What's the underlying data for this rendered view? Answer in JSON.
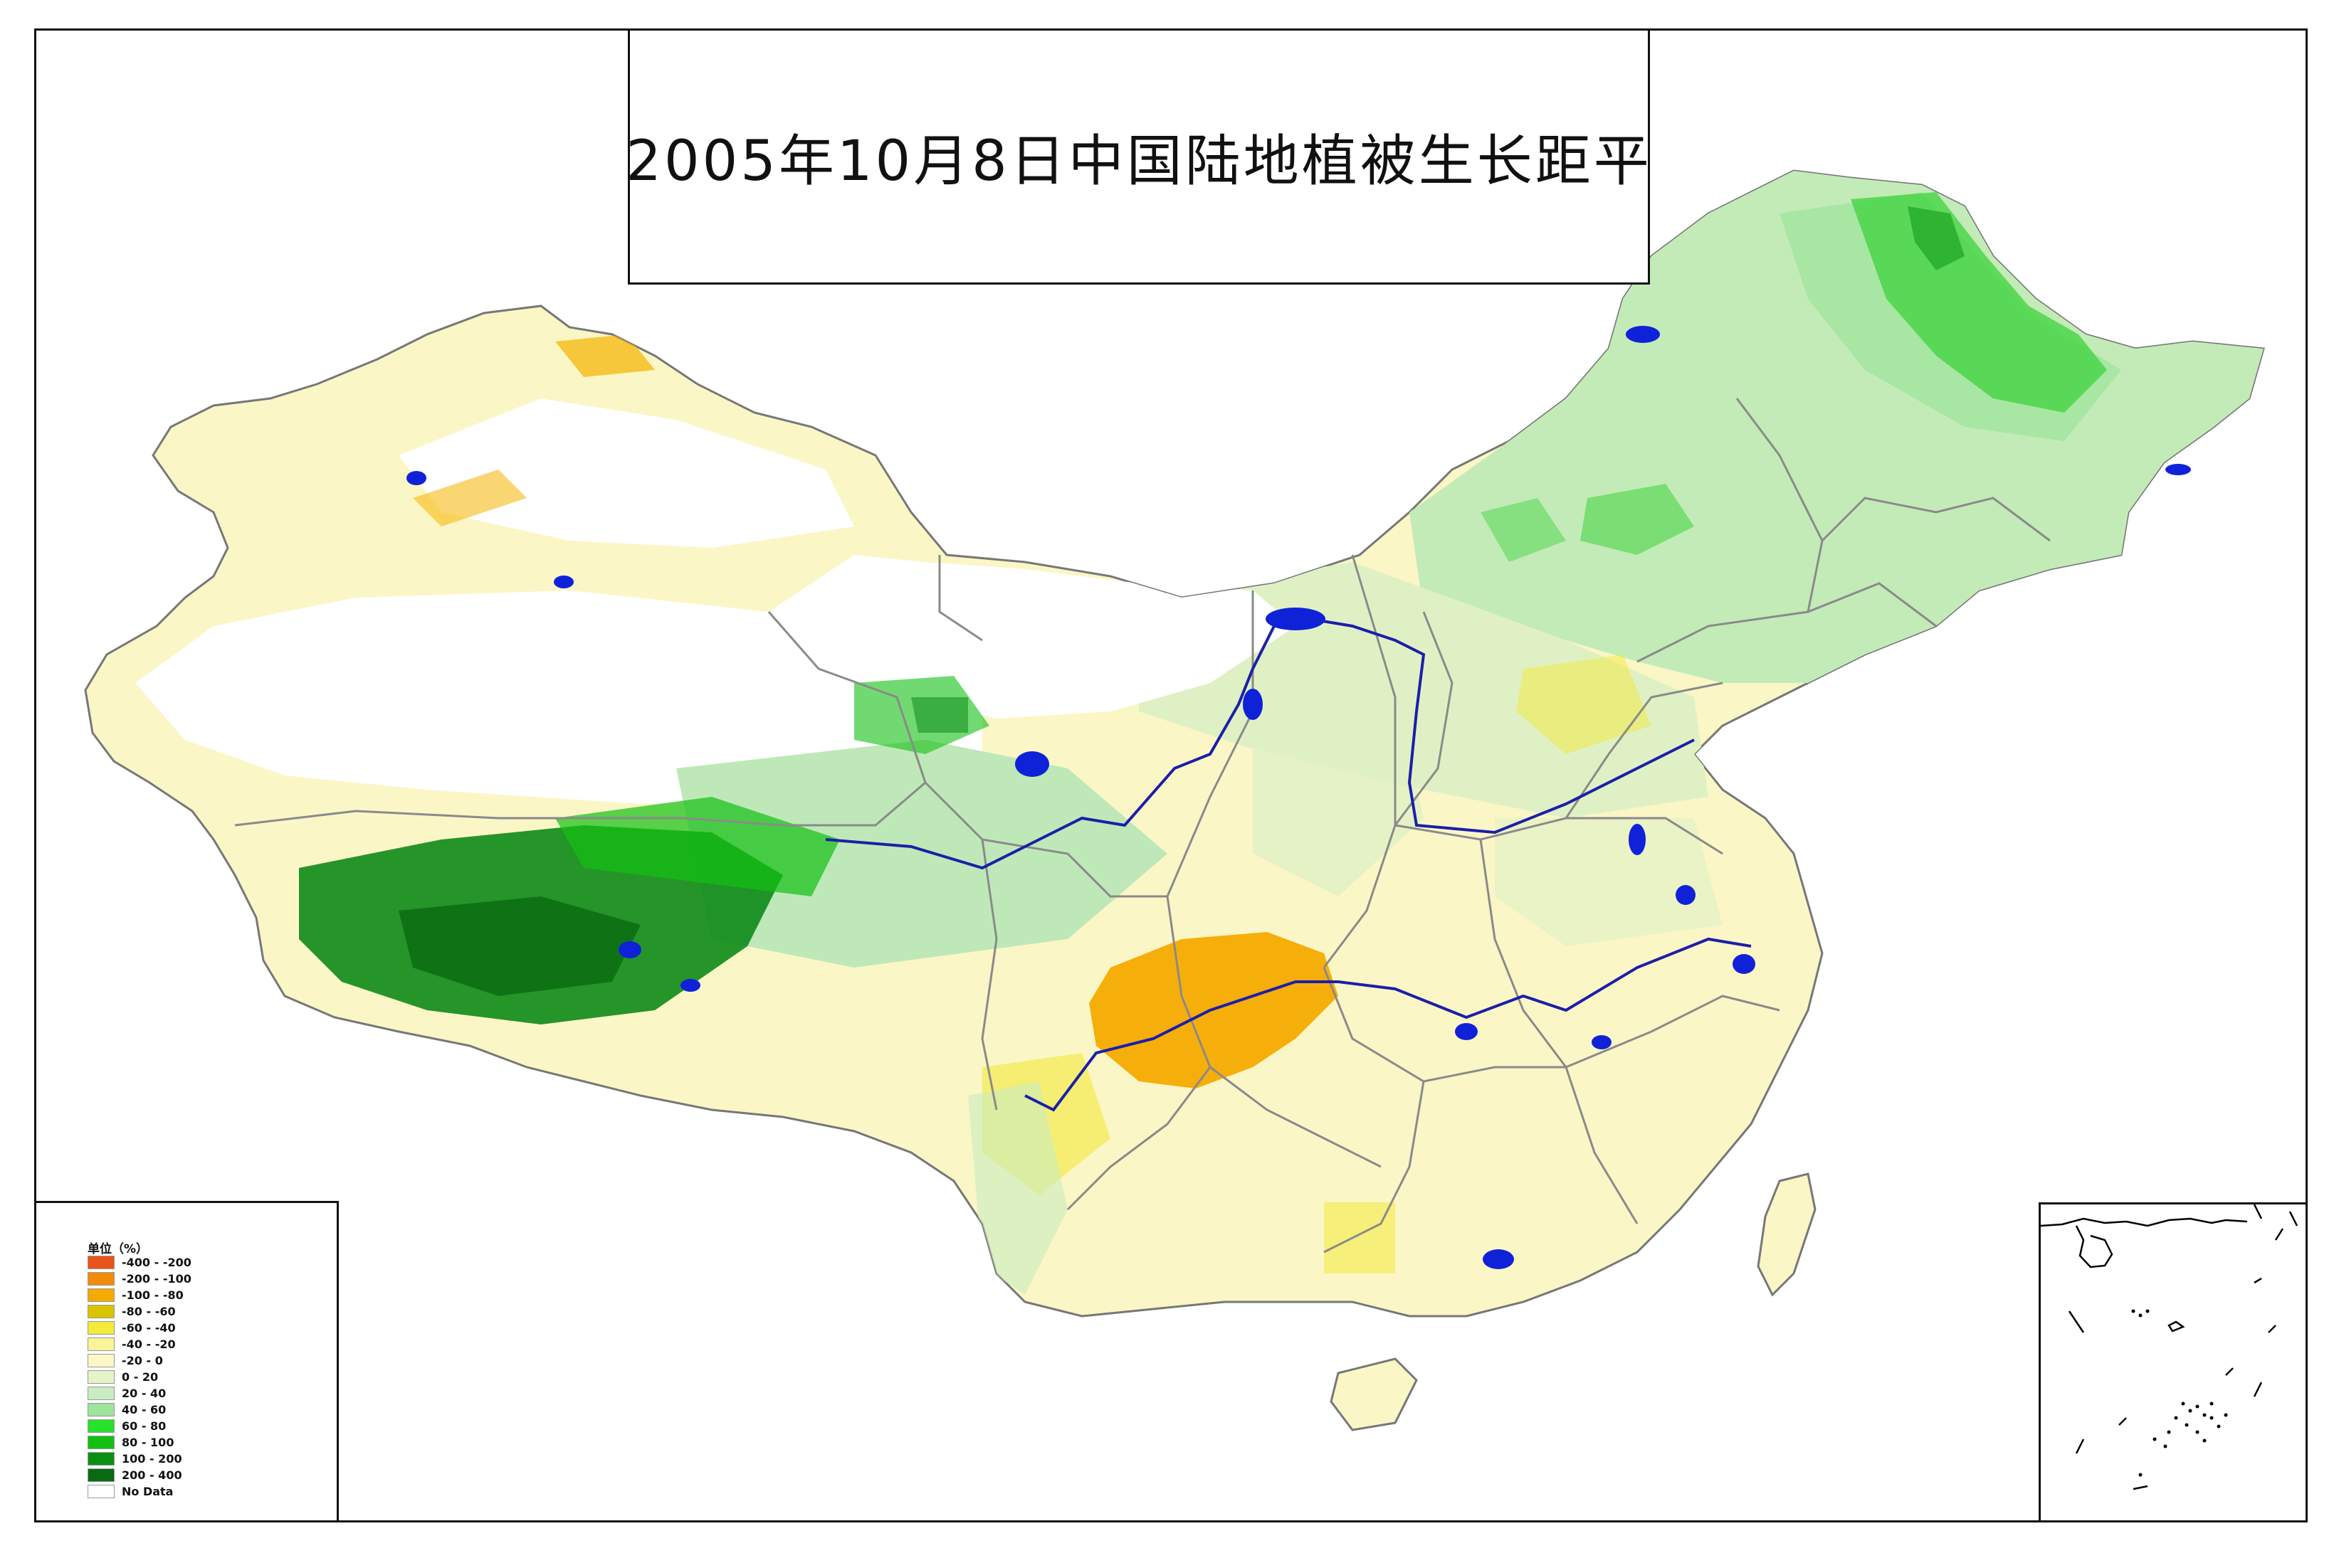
{
  "title": "2005年10月8日中国陆地植被生长距平",
  "legend": {
    "title": "单位（%）",
    "items": [
      {
        "label": "-400 - -200",
        "color": "#e8531a"
      },
      {
        "label": "-200 - -100",
        "color": "#f08c0c"
      },
      {
        "label": "-100 - -80",
        "color": "#f5aa00"
      },
      {
        "label": "-80 - -60",
        "color": "#d9c400"
      },
      {
        "label": "-60 - -40",
        "color": "#f3ea3a"
      },
      {
        "label": "-40 - -20",
        "color": "#faf39a"
      },
      {
        "label": "-20 - 0",
        "color": "#fdf7c7"
      },
      {
        "label": "0 - 20",
        "color": "#e6f4c6"
      },
      {
        "label": "20 - 40",
        "color": "#c9ecc0"
      },
      {
        "label": "40 - 60",
        "color": "#9fe49c"
      },
      {
        "label": "60 - 80",
        "color": "#28e12a"
      },
      {
        "label": "80 - 100",
        "color": "#12c012"
      },
      {
        "label": "100 - 200",
        "color": "#0b8f13"
      },
      {
        "label": "200 - 400",
        "color": "#0a6a12"
      },
      {
        "label": "No Data",
        "color": "#ffffff"
      }
    ]
  }
}
